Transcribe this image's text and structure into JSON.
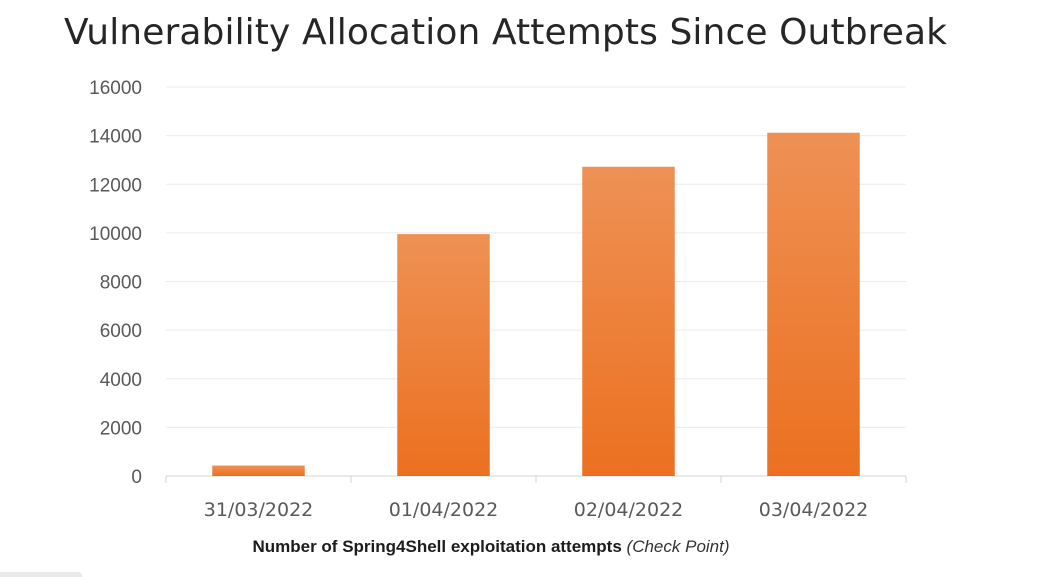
{
  "chart_data": {
    "type": "bar",
    "title": "Vulnerability Allocation Attempts Since Outbreak",
    "categories": [
      "31/03/2022",
      "01/04/2022",
      "02/04/2022",
      "03/04/2022"
    ],
    "values": [
      430,
      9950,
      12720,
      14120
    ],
    "ylim": [
      0,
      16000
    ],
    "yticks": [
      0,
      2000,
      4000,
      6000,
      8000,
      10000,
      12000,
      14000,
      16000
    ],
    "xlabel": "",
    "ylabel": "",
    "grid": true,
    "legend": "none",
    "bar_color": "#ef7e33",
    "bar_color_top": "#ee9155",
    "bar_color_bottom": "#ec7020"
  },
  "caption": {
    "main": "Number of Spring4Shell exploitation attempts",
    "source": "(Check Point)"
  }
}
